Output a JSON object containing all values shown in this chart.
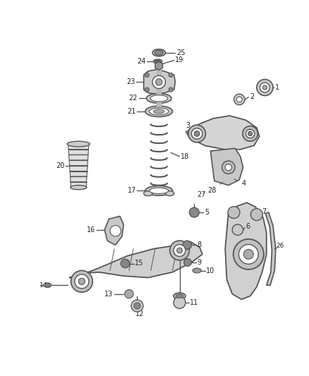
{
  "background_color": "#ffffff",
  "line_color": "#555555",
  "text_color": "#222222",
  "figsize": [
    4.38,
    5.33
  ],
  "dpi": 100
}
